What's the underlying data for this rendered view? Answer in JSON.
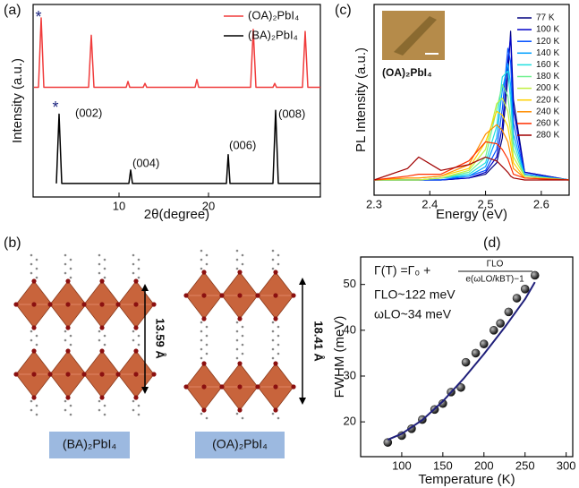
{
  "panel_labels": [
    "(a)",
    "(b)",
    "(c)",
    "(d)"
  ],
  "structure": {
    "spacings": [
      "13.59 Å",
      "18.41 Å"
    ],
    "compounds": [
      "(BA)₂PbI₄",
      "(OA)₂PbI₄"
    ]
  },
  "chart_data": [
    {
      "type": "line",
      "xlabel": "2θ(degree)",
      "ylabel": "Intensity (a.u.)",
      "xlim": [
        0.4,
        32.5
      ],
      "xticks": [
        10,
        20
      ],
      "ylim": [
        0,
        100
      ],
      "legend": "upper right",
      "annotations": [
        "*",
        "*",
        "(002)",
        "(004)",
        "(006)",
        "(008)"
      ],
      "series": [
        {
          "name": "(OA)₂PbI₄",
          "color": "#f03c3c",
          "x": [
            0.5,
            1.0,
            1.3,
            1.6,
            6.6,
            6.9,
            7.2,
            10.8,
            11.0,
            11.2,
            12.7,
            12.9,
            13.1,
            18.5,
            18.7,
            18.9,
            24.7,
            25.0,
            25.3,
            27.2,
            27.4,
            27.6,
            30.5,
            30.8,
            31.1,
            32.5
          ],
          "values": [
            57,
            57,
            93,
            57,
            57,
            84,
            57,
            57,
            60,
            57,
            57,
            59,
            57,
            57,
            61,
            57,
            57,
            87,
            57,
            57,
            59,
            57,
            57,
            86,
            57,
            57
          ]
        },
        {
          "name": "(BA)₂PbI₄",
          "color": "#000000",
          "x": [
            3.0,
            3.3,
            3.6,
            11.1,
            11.3,
            11.5,
            22.0,
            22.2,
            22.4,
            27.2,
            27.5,
            27.8,
            32.5
          ],
          "values": [
            7,
            43,
            7,
            7,
            14,
            7,
            7,
            22,
            7,
            7,
            45,
            7,
            7
          ]
        }
      ]
    },
    {
      "type": "line",
      "xlabel": "Energy (eV)",
      "ylabel": "PL Intensity (a.u.)",
      "xlim": [
        2.3,
        2.65
      ],
      "xticks": [
        2.3,
        2.4,
        2.5,
        2.6
      ],
      "ylim": [
        0,
        100
      ],
      "legend": "upper right",
      "inset_label": "(OA)₂PbI₄",
      "x": [
        2.3,
        2.36,
        2.38,
        2.42,
        2.47,
        2.5,
        2.52,
        2.53,
        2.54,
        2.545,
        2.55,
        2.57,
        2.65
      ],
      "series": [
        {
          "name": "77 K",
          "color": "#00007f",
          "values": [
            8,
            8,
            8,
            8,
            9,
            11,
            17,
            30,
            62,
            86,
            50,
            12,
            8
          ]
        },
        {
          "name": "100 K",
          "color": "#0000c8",
          "values": [
            8,
            8,
            8,
            8,
            9,
            12,
            20,
            36,
            70,
            83,
            45,
            12,
            8
          ]
        },
        {
          "name": "120 K",
          "color": "#0050ff",
          "values": [
            8,
            8,
            8,
            8,
            10,
            13,
            24,
            45,
            77,
            70,
            38,
            11,
            8
          ]
        },
        {
          "name": "140 K",
          "color": "#00a0ff",
          "values": [
            8,
            8,
            8,
            9,
            10,
            15,
            30,
            55,
            69,
            58,
            32,
            11,
            8
          ]
        },
        {
          "name": "160 K",
          "color": "#20e0e0",
          "values": [
            8,
            8,
            8,
            9,
            11,
            17,
            36,
            62,
            65,
            50,
            28,
            10,
            8
          ]
        },
        {
          "name": "180 K",
          "color": "#70f090",
          "values": [
            8,
            8,
            8,
            9,
            12,
            20,
            45,
            58,
            52,
            40,
            24,
            10,
            8
          ]
        },
        {
          "name": "200 K",
          "color": "#c0f040",
          "values": [
            8,
            8,
            8,
            9,
            13,
            24,
            48,
            51,
            44,
            33,
            20,
            10,
            8
          ]
        },
        {
          "name": "220 K",
          "color": "#ffd000",
          "values": [
            8,
            9,
            9,
            10,
            14,
            28,
            44,
            42,
            36,
            27,
            17,
            9,
            8
          ]
        },
        {
          "name": "240 K",
          "color": "#ff8c00",
          "values": [
            8,
            9,
            9,
            10,
            16,
            32,
            37,
            34,
            28,
            21,
            14,
            9,
            8
          ]
        },
        {
          "name": "260 K",
          "color": "#ff3000",
          "values": [
            8,
            10,
            11,
            11,
            18,
            28,
            27,
            24,
            19,
            15,
            11,
            9,
            8
          ]
        },
        {
          "name": "280 K",
          "color": "#a00000",
          "values": [
            8,
            14,
            20,
            13,
            16,
            20,
            18,
            15,
            12,
            10,
            9,
            8,
            8
          ]
        }
      ]
    },
    {
      "type": "scatter",
      "xlabel": "Temperature (K)",
      "ylabel": "FWHM (meV)",
      "xlim": [
        50,
        308
      ],
      "xticks": [
        100,
        150,
        200,
        250,
        300
      ],
      "ylim": [
        12.4,
        56
      ],
      "yticks": [
        20,
        30,
        40,
        50
      ],
      "formula": {
        "lhs": "Γ(T) =Γ₀ +",
        "numerator": "ΓLO",
        "denominator": "e(ωLO/kBT)−1"
      },
      "annotations": [
        "ΓLO~122 meV",
        "ωLO~34 meV"
      ],
      "series": [
        {
          "style": "markers",
          "color": "#1c1c1c",
          "x": [
            83,
            100,
            112,
            125,
            140,
            150,
            160,
            172,
            178,
            190,
            200,
            212,
            220,
            230,
            240,
            250,
            262
          ],
          "values": [
            15.5,
            17,
            18.5,
            20.5,
            22.7,
            24,
            26.5,
            27.5,
            33,
            35,
            37,
            40,
            41.5,
            44,
            47,
            49,
            52
          ]
        },
        {
          "style": "line",
          "color": "#1f1f7a",
          "x": [
            83,
            100,
            125,
            150,
            175,
            200,
            225,
            250,
            262
          ],
          "values": [
            16.1,
            17.4,
            20.4,
            24.5,
            29.4,
            34.8,
            40.6,
            46.8,
            50.5
          ]
        }
      ]
    }
  ]
}
